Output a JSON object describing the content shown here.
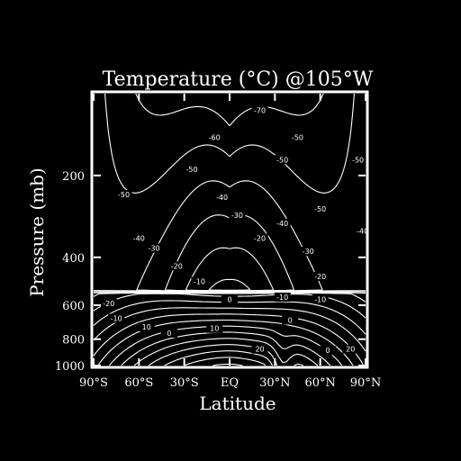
{
  "chart_data": {
    "type": "contour",
    "title": "Temperature (°C) @105°W",
    "xlabel": "Latitude",
    "ylabel": "Pressure (mb)",
    "x_ticks": [
      {
        "value": -90,
        "label": "90°S"
      },
      {
        "value": -60,
        "label": "60°S"
      },
      {
        "value": -30,
        "label": "30°S"
      },
      {
        "value": 0,
        "label": "EQ"
      },
      {
        "value": 30,
        "label": "30°N"
      },
      {
        "value": 60,
        "label": "60°N"
      },
      {
        "value": 90,
        "label": "90°N"
      }
    ],
    "y_ticks": [
      {
        "value": 200,
        "label": "200"
      },
      {
        "value": 400,
        "label": "400"
      },
      {
        "value": 600,
        "label": "600"
      },
      {
        "value": 800,
        "label": "800"
      },
      {
        "value": 1000,
        "label": "1000"
      }
    ],
    "xlim": [
      -90,
      90
    ],
    "ylim": [
      1000,
      100
    ],
    "y_scale": "log",
    "contour_interval": 5,
    "contour_labels": [
      {
        "value": -70,
        "label": "-70",
        "lat": 20,
        "p": 115
      },
      {
        "value": -60,
        "label": "-60",
        "lat": -10,
        "p": 145
      },
      {
        "value": -50,
        "label": "-50",
        "lat": 45,
        "p": 145
      },
      {
        "value": -50,
        "label": "-50",
        "lat": 35,
        "p": 175
      },
      {
        "value": -50,
        "label": "-50",
        "lat": 85,
        "p": 175
      },
      {
        "value": -50,
        "label": "-50",
        "lat": -25,
        "p": 190
      },
      {
        "value": -50,
        "label": "-50",
        "lat": -70,
        "p": 235
      },
      {
        "value": -50,
        "label": "-50",
        "lat": 60,
        "p": 265
      },
      {
        "value": -40,
        "label": "-40",
        "lat": -5,
        "p": 240
      },
      {
        "value": -40,
        "label": "-40",
        "lat": 35,
        "p": 300
      },
      {
        "value": -40,
        "label": "-40",
        "lat": -60,
        "p": 340
      },
      {
        "value": -40,
        "label": "-40",
        "lat": 88,
        "p": 320
      },
      {
        "value": -30,
        "label": "-30",
        "lat": 5,
        "p": 280
      },
      {
        "value": -30,
        "label": "-30",
        "lat": 52,
        "p": 380
      },
      {
        "value": -30,
        "label": "-30",
        "lat": -50,
        "p": 370
      },
      {
        "value": -20,
        "label": "-20",
        "lat": 20,
        "p": 340
      },
      {
        "value": -20,
        "label": "-20",
        "lat": -35,
        "p": 430
      },
      {
        "value": -20,
        "label": "-20",
        "lat": 60,
        "p": 470
      },
      {
        "value": -10,
        "label": "-10",
        "lat": -20,
        "p": 490
      },
      {
        "value": -10,
        "label": "-10",
        "lat": 35,
        "p": 560
      },
      {
        "value": -10,
        "label": "-10",
        "lat": 60,
        "p": 570
      },
      {
        "value": -20,
        "label": "-20",
        "lat": -80,
        "p": 590
      },
      {
        "value": -10,
        "label": "-10",
        "lat": -75,
        "p": 670
      },
      {
        "value": 0,
        "label": "0",
        "lat": 0,
        "p": 570
      },
      {
        "value": 0,
        "label": "0",
        "lat": 40,
        "p": 680
      },
      {
        "value": 0,
        "label": "0",
        "lat": 65,
        "p": 880
      },
      {
        "value": 10,
        "label": "10",
        "lat": -55,
        "p": 720
      },
      {
        "value": 10,
        "label": "10",
        "lat": -10,
        "p": 730
      },
      {
        "value": 20,
        "label": "20",
        "lat": 80,
        "p": 870
      },
      {
        "value": 20,
        "label": "20",
        "lat": 20,
        "p": 870
      },
      {
        "value": 0,
        "label": "0",
        "lat": -40,
        "p": 760
      }
    ]
  }
}
